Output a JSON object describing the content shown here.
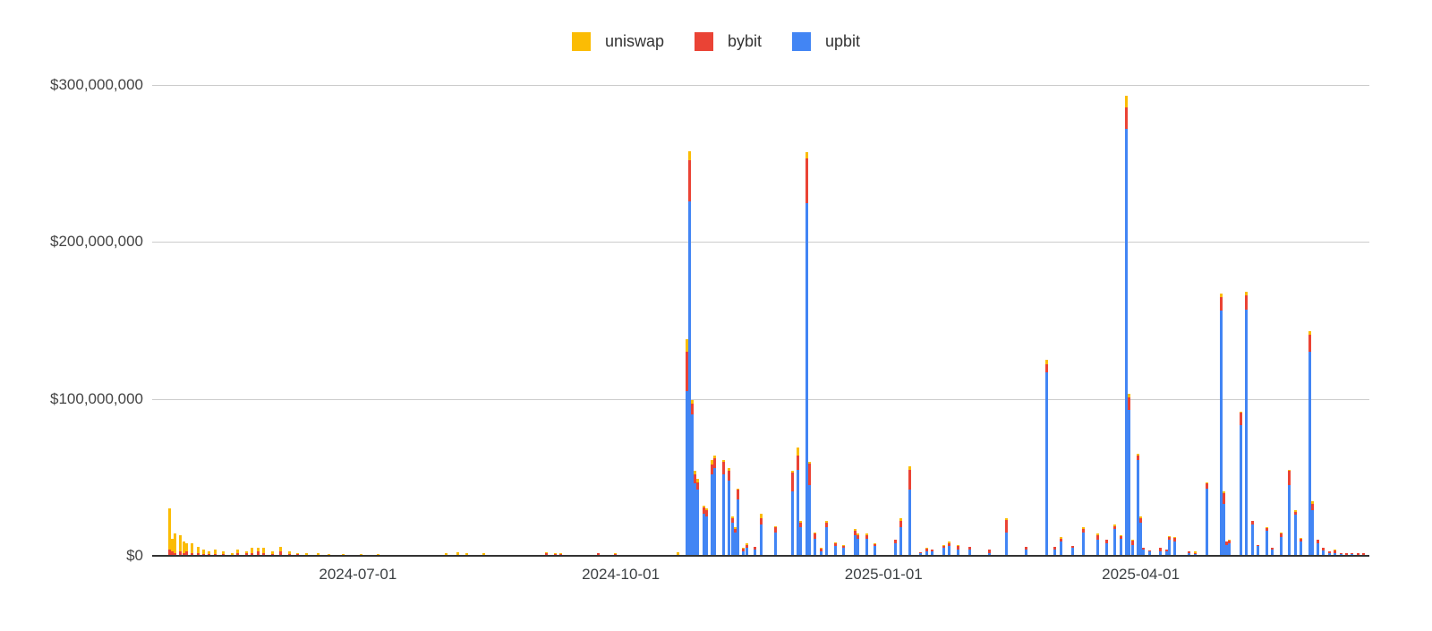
{
  "chart_data": {
    "type": "bar",
    "stacked": true,
    "values_in": "USD_millions",
    "legend": {
      "position": "top",
      "items": [
        {
          "label": "uniswap",
          "color": "#FBBC04"
        },
        {
          "label": "bybit",
          "color": "#EA4335"
        },
        {
          "label": "upbit",
          "color": "#4285F4"
        }
      ]
    },
    "stack_order_bottom_to_top": [
      "upbit",
      "bybit",
      "uniswap"
    ],
    "y_axis": {
      "range_usd": [
        0,
        300000000
      ],
      "ticks": [
        {
          "label": "$0",
          "value": 0
        },
        {
          "label": "$100,000,000",
          "value": 100
        },
        {
          "label": "$200,000,000",
          "value": 200
        },
        {
          "label": "$300,000,000",
          "value": 300
        }
      ],
      "gridlines": true
    },
    "x_axis": {
      "range": [
        "2024-04-20",
        "2025-06-20"
      ],
      "ticks": [
        "2024-07-01",
        "2024-10-01",
        "2025-01-01",
        "2025-04-01"
      ]
    },
    "columns": [
      "date",
      "uniswap",
      "bybit",
      "upbit"
    ],
    "points": [
      [
        "2024-04-26",
        26,
        4,
        0
      ],
      [
        "2024-04-27",
        8,
        3,
        0
      ],
      [
        "2024-04-28",
        12,
        2,
        0
      ],
      [
        "2024-04-30",
        10,
        3,
        0
      ],
      [
        "2024-05-01",
        7,
        2,
        0
      ],
      [
        "2024-05-02",
        5,
        3,
        0
      ],
      [
        "2024-05-04",
        6,
        2,
        0
      ],
      [
        "2024-05-06",
        4,
        2,
        0
      ],
      [
        "2024-05-08",
        3,
        1,
        0
      ],
      [
        "2024-05-10",
        2,
        1,
        0
      ],
      [
        "2024-05-12",
        3,
        1,
        0
      ],
      [
        "2024-05-15",
        2,
        1,
        0
      ],
      [
        "2024-05-18",
        1.5,
        0.5,
        0
      ],
      [
        "2024-05-20",
        2,
        2,
        0
      ],
      [
        "2024-05-23",
        1,
        2,
        0
      ],
      [
        "2024-05-25",
        3,
        2,
        0
      ],
      [
        "2024-05-27",
        2,
        3,
        0
      ],
      [
        "2024-05-29",
        3,
        2,
        0
      ],
      [
        "2024-06-01",
        2,
        1,
        0
      ],
      [
        "2024-06-04",
        3,
        3,
        0
      ],
      [
        "2024-06-07",
        2,
        1,
        0
      ],
      [
        "2024-06-10",
        1,
        1,
        0
      ],
      [
        "2024-06-13",
        1.5,
        0.5,
        0
      ],
      [
        "2024-06-17",
        1,
        0.5,
        0
      ],
      [
        "2024-06-21",
        0.8,
        0.4,
        0
      ],
      [
        "2024-06-26",
        1,
        0.3,
        0
      ],
      [
        "2024-07-02",
        0.8,
        0.4,
        0
      ],
      [
        "2024-07-08",
        0.6,
        0.3,
        0
      ],
      [
        "2024-07-15",
        0.5,
        0.3,
        0
      ],
      [
        "2024-07-22",
        0.6,
        0.2,
        0
      ],
      [
        "2024-08-01",
        1,
        0.5,
        0
      ],
      [
        "2024-08-05",
        1.5,
        0.8,
        0
      ],
      [
        "2024-08-08",
        1,
        0.5,
        0
      ],
      [
        "2024-08-14",
        1.5,
        0.5,
        0
      ],
      [
        "2024-08-25",
        0.5,
        0.3,
        0
      ],
      [
        "2024-09-05",
        1,
        1.5,
        0
      ],
      [
        "2024-09-08",
        0.8,
        1.2,
        0
      ],
      [
        "2024-09-10",
        1,
        1,
        0
      ],
      [
        "2024-09-23",
        0.5,
        1.5,
        0
      ],
      [
        "2024-09-29",
        0.5,
        1.2,
        0
      ],
      [
        "2024-10-21",
        2,
        0.5,
        0
      ],
      [
        "2024-10-24",
        8,
        25,
        105
      ],
      [
        "2024-10-25",
        6,
        26,
        226
      ],
      [
        "2024-10-26",
        2,
        7,
        90
      ],
      [
        "2024-10-27",
        2,
        6,
        46
      ],
      [
        "2024-10-28",
        2,
        5,
        42
      ],
      [
        "2024-10-30",
        1,
        4,
        27
      ],
      [
        "2024-10-31",
        1,
        4,
        25
      ],
      [
        "2024-11-02",
        3,
        6,
        52
      ],
      [
        "2024-11-03",
        2,
        6,
        56
      ],
      [
        "2024-11-06",
        1,
        8,
        52
      ],
      [
        "2024-11-08",
        2,
        6,
        48
      ],
      [
        "2024-11-09",
        1,
        3,
        21
      ],
      [
        "2024-11-10",
        1,
        2,
        15
      ],
      [
        "2024-11-11",
        1,
        6,
        36
      ],
      [
        "2024-11-13",
        0.5,
        1.5,
        3
      ],
      [
        "2024-11-14",
        1,
        2,
        5
      ],
      [
        "2024-11-17",
        0.5,
        1.5,
        4
      ],
      [
        "2024-11-19",
        3,
        4,
        20
      ],
      [
        "2024-11-24",
        1,
        3,
        15
      ],
      [
        "2024-11-30",
        1,
        12,
        41
      ],
      [
        "2024-12-02",
        5,
        9,
        55
      ],
      [
        "2024-12-03",
        1,
        3,
        18
      ],
      [
        "2024-12-05",
        4,
        28,
        225
      ],
      [
        "2024-12-06",
        1,
        14,
        45
      ],
      [
        "2024-12-08",
        1,
        3,
        11
      ],
      [
        "2024-12-10",
        0.5,
        1.5,
        3
      ],
      [
        "2024-12-12",
        1,
        3,
        18
      ],
      [
        "2024-12-15",
        0.5,
        2,
        6
      ],
      [
        "2024-12-18",
        0.5,
        1.5,
        5
      ],
      [
        "2024-12-22",
        1,
        3,
        13
      ],
      [
        "2024-12-23",
        1,
        2,
        11
      ],
      [
        "2024-12-26",
        1,
        2,
        11
      ],
      [
        "2024-12-29",
        0.5,
        1.5,
        6
      ],
      [
        "2025-01-05",
        0.5,
        2,
        8
      ],
      [
        "2025-01-07",
        2,
        4,
        18
      ],
      [
        "2025-01-10",
        2,
        13,
        42
      ],
      [
        "2025-01-14",
        0,
        1,
        1.5
      ],
      [
        "2025-01-16",
        0.5,
        1.5,
        3
      ],
      [
        "2025-01-18",
        0,
        1,
        3
      ],
      [
        "2025-01-22",
        0.5,
        1.5,
        5
      ],
      [
        "2025-01-24",
        1,
        2,
        6
      ],
      [
        "2025-01-27",
        0.5,
        2.5,
        4
      ],
      [
        "2025-01-31",
        0.5,
        1.5,
        4
      ],
      [
        "2025-02-07",
        0,
        2,
        2
      ],
      [
        "2025-02-13",
        1,
        8,
        15
      ],
      [
        "2025-02-20",
        0.5,
        1.5,
        4
      ],
      [
        "2025-02-27",
        3,
        5,
        117
      ],
      [
        "2025-03-02",
        0.5,
        1.5,
        4
      ],
      [
        "2025-03-04",
        1,
        2,
        9
      ],
      [
        "2025-03-08",
        0,
        1,
        5
      ],
      [
        "2025-03-12",
        1,
        2,
        15
      ],
      [
        "2025-03-17",
        1,
        3,
        10
      ],
      [
        "2025-03-20",
        0.5,
        2,
        8
      ],
      [
        "2025-03-23",
        1,
        2,
        17
      ],
      [
        "2025-03-25",
        0.5,
        1.5,
        11
      ],
      [
        "2025-03-27",
        7,
        14,
        272
      ],
      [
        "2025-03-28",
        2,
        8,
        93
      ],
      [
        "2025-03-29",
        0.5,
        2.5,
        7
      ],
      [
        "2025-03-31",
        1,
        3,
        61
      ],
      [
        "2025-04-01",
        1,
        3,
        21
      ],
      [
        "2025-04-02",
        0,
        1,
        4
      ],
      [
        "2025-04-04",
        0,
        0.5,
        3
      ],
      [
        "2025-04-08",
        0,
        2,
        3
      ],
      [
        "2025-04-10",
        0,
        1,
        3
      ],
      [
        "2025-04-11",
        0.5,
        1.5,
        10.5
      ],
      [
        "2025-04-13",
        0.5,
        2.5,
        9
      ],
      [
        "2025-04-18",
        0,
        1,
        2
      ],
      [
        "2025-04-20",
        1.5,
        0.5,
        1
      ],
      [
        "2025-04-24",
        0.5,
        3.5,
        43
      ],
      [
        "2025-04-29",
        2,
        9,
        156
      ],
      [
        "2025-04-30",
        1,
        7,
        33
      ],
      [
        "2025-05-01",
        0,
        2,
        7
      ],
      [
        "2025-05-02",
        0.5,
        1.5,
        8
      ],
      [
        "2025-05-06",
        1,
        8,
        83
      ],
      [
        "2025-05-08",
        2,
        9,
        157
      ],
      [
        "2025-05-10",
        0,
        2,
        20
      ],
      [
        "2025-05-12",
        0,
        1,
        6
      ],
      [
        "2025-05-15",
        0.5,
        1.5,
        16
      ],
      [
        "2025-05-17",
        0,
        1,
        4
      ],
      [
        "2025-05-20",
        0.5,
        2.5,
        12
      ],
      [
        "2025-05-23",
        1,
        9,
        45
      ],
      [
        "2025-05-25",
        1,
        2,
        26
      ],
      [
        "2025-05-27",
        0.5,
        2,
        9
      ],
      [
        "2025-05-30",
        2,
        11,
        130
      ],
      [
        "2025-05-31",
        2,
        4,
        29
      ],
      [
        "2025-06-02",
        0,
        2,
        8
      ],
      [
        "2025-06-04",
        0,
        1.5,
        3.5
      ],
      [
        "2025-06-06",
        0,
        1,
        2
      ],
      [
        "2025-06-08",
        0.5,
        1.5,
        2
      ],
      [
        "2025-06-10",
        0,
        1,
        1
      ],
      [
        "2025-06-12",
        0,
        1.5,
        0.5
      ],
      [
        "2025-06-14",
        0,
        1,
        1
      ],
      [
        "2025-06-16",
        0,
        1.5,
        0.5
      ],
      [
        "2025-06-18",
        0,
        1,
        0.5
      ]
    ],
    "colors": {
      "uniswap": "#FBBC04",
      "bybit": "#EA4335",
      "upbit": "#4285F4",
      "gridline": "#cccccc",
      "baseline": "#333333",
      "tick_text": "#444444",
      "background": "#ffffff"
    }
  }
}
